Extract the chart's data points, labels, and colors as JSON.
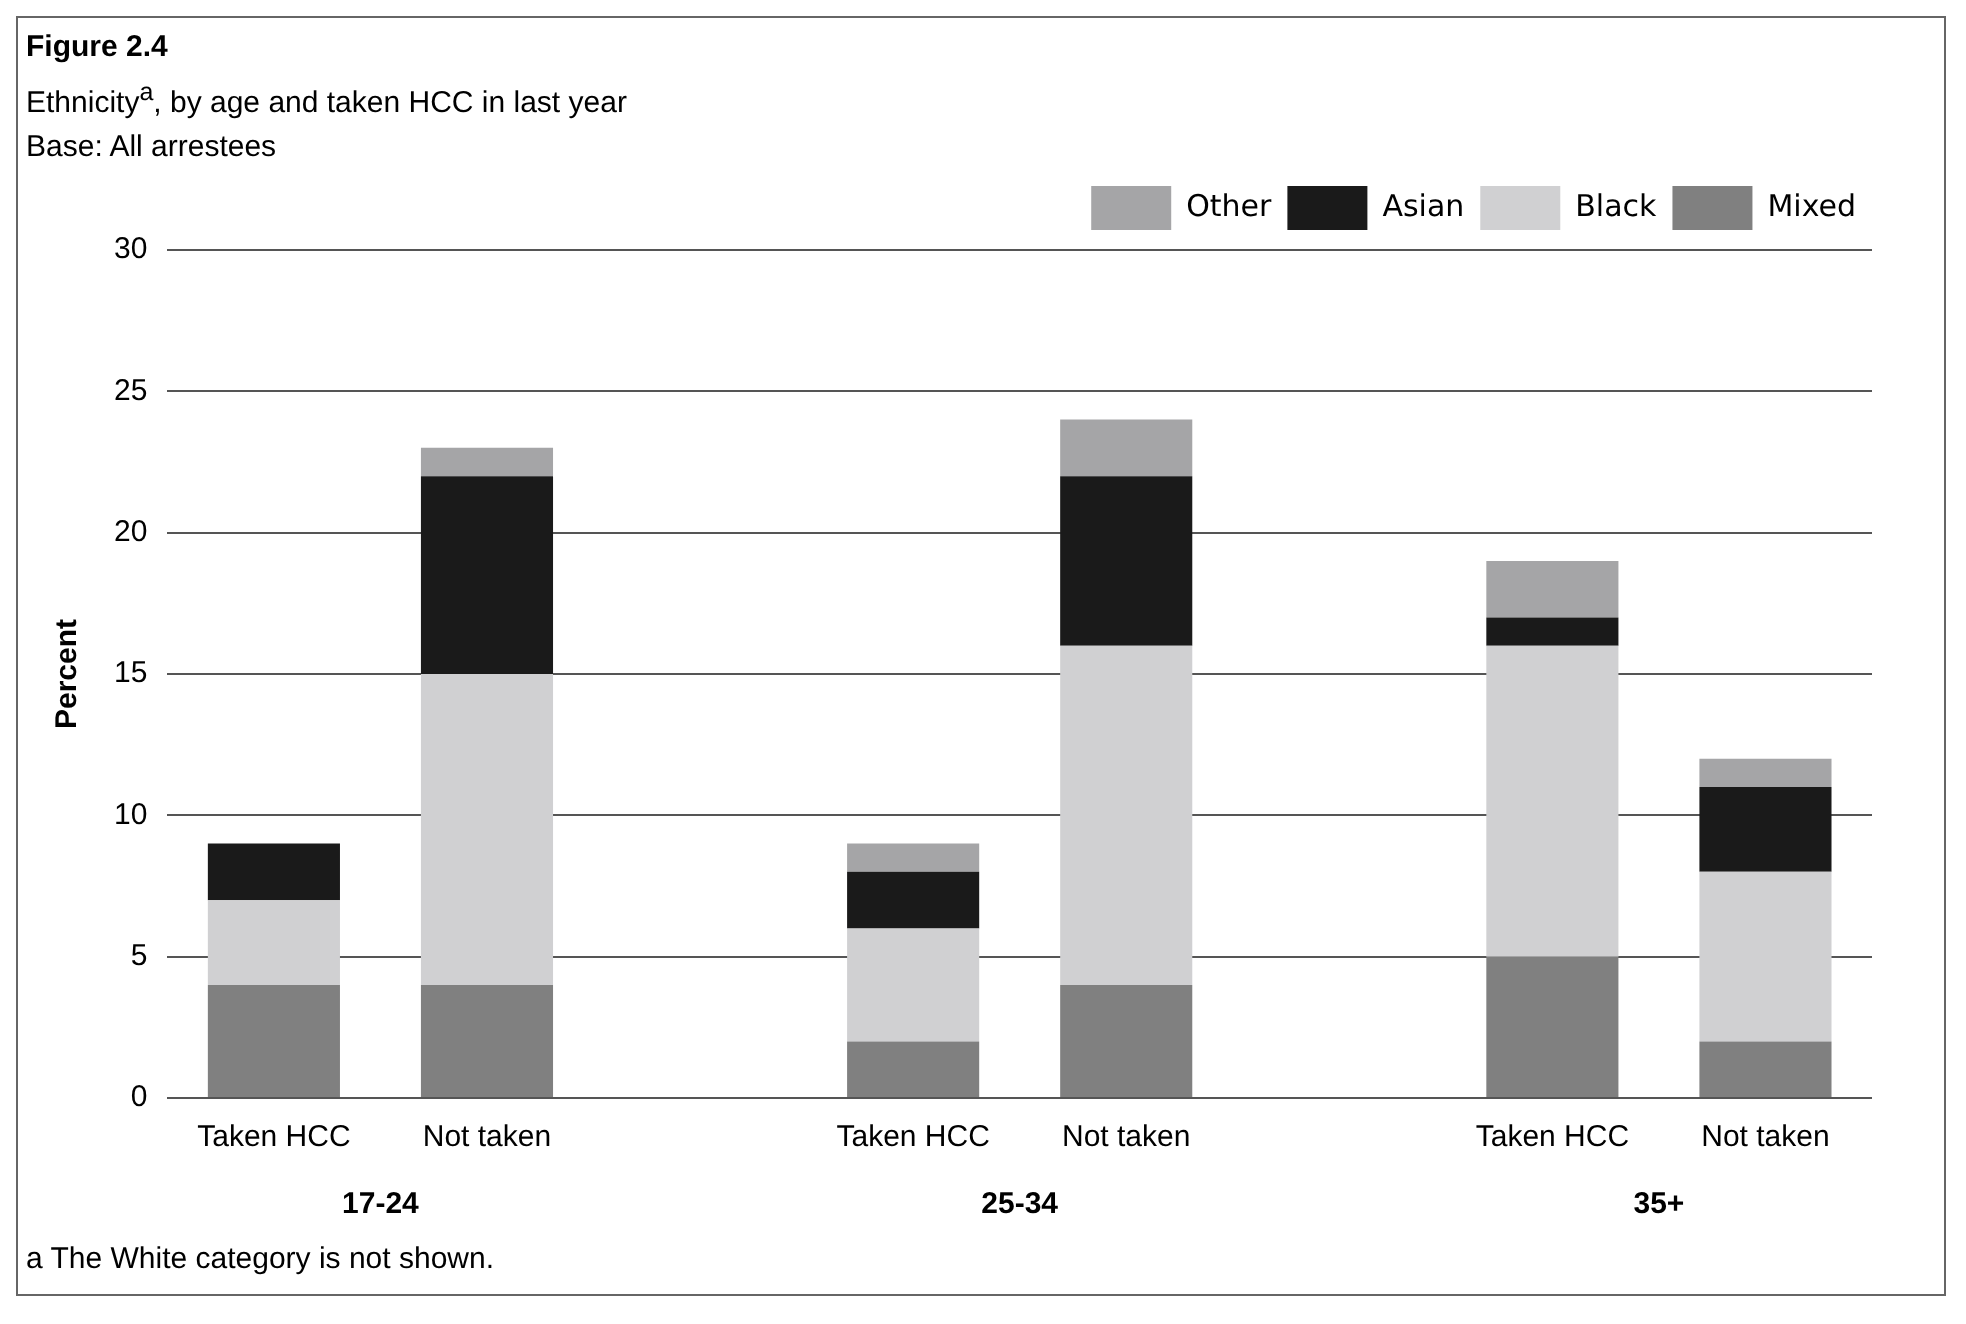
{
  "chart_data": {
    "type": "bar",
    "title": "Figure 2.4",
    "subtitle": "Ethnicity$^{a}$, by age and taken HCC in last year",
    "ylabel": "Percent",
    "categories": [
      "Taken HCC",
      "Not taken",
      null,
      "Taken HCC",
      "Not taken",
      null,
      "Taken HCC",
      "Not taken"
    ],
    "stacked": true,
    "series": [
      {
        "name": "Mixed",
        "color": "#808080",
        "values": [
          4,
          4,
          null,
          2,
          4,
          null,
          5,
          2
        ]
      },
      {
        "name": "Black",
        "color": "#d0d0d2",
        "values": [
          3,
          11,
          null,
          4,
          12,
          null,
          11,
          6
        ]
      },
      {
        "name": "Asian",
        "color": "#1a1a1a",
        "values": [
          2,
          7,
          null,
          2,
          6,
          null,
          1,
          3
        ]
      },
      {
        "name": "Other",
        "color": "#a5a5a7",
        "values": [
          0,
          1,
          null,
          1,
          2,
          null,
          2,
          1
        ]
      }
    ],
    "ylim": [
      0,
      30
    ],
    "yticks": [
      0,
      5,
      10,
      15,
      20,
      25,
      30
    ],
    "grid": "y",
    "legend": "top right",
    "annotations": [
      "Base: All arrestees",
      "17-24",
      "25-34",
      "35+",
      "a The White category is not shown."
    ]
  }
}
